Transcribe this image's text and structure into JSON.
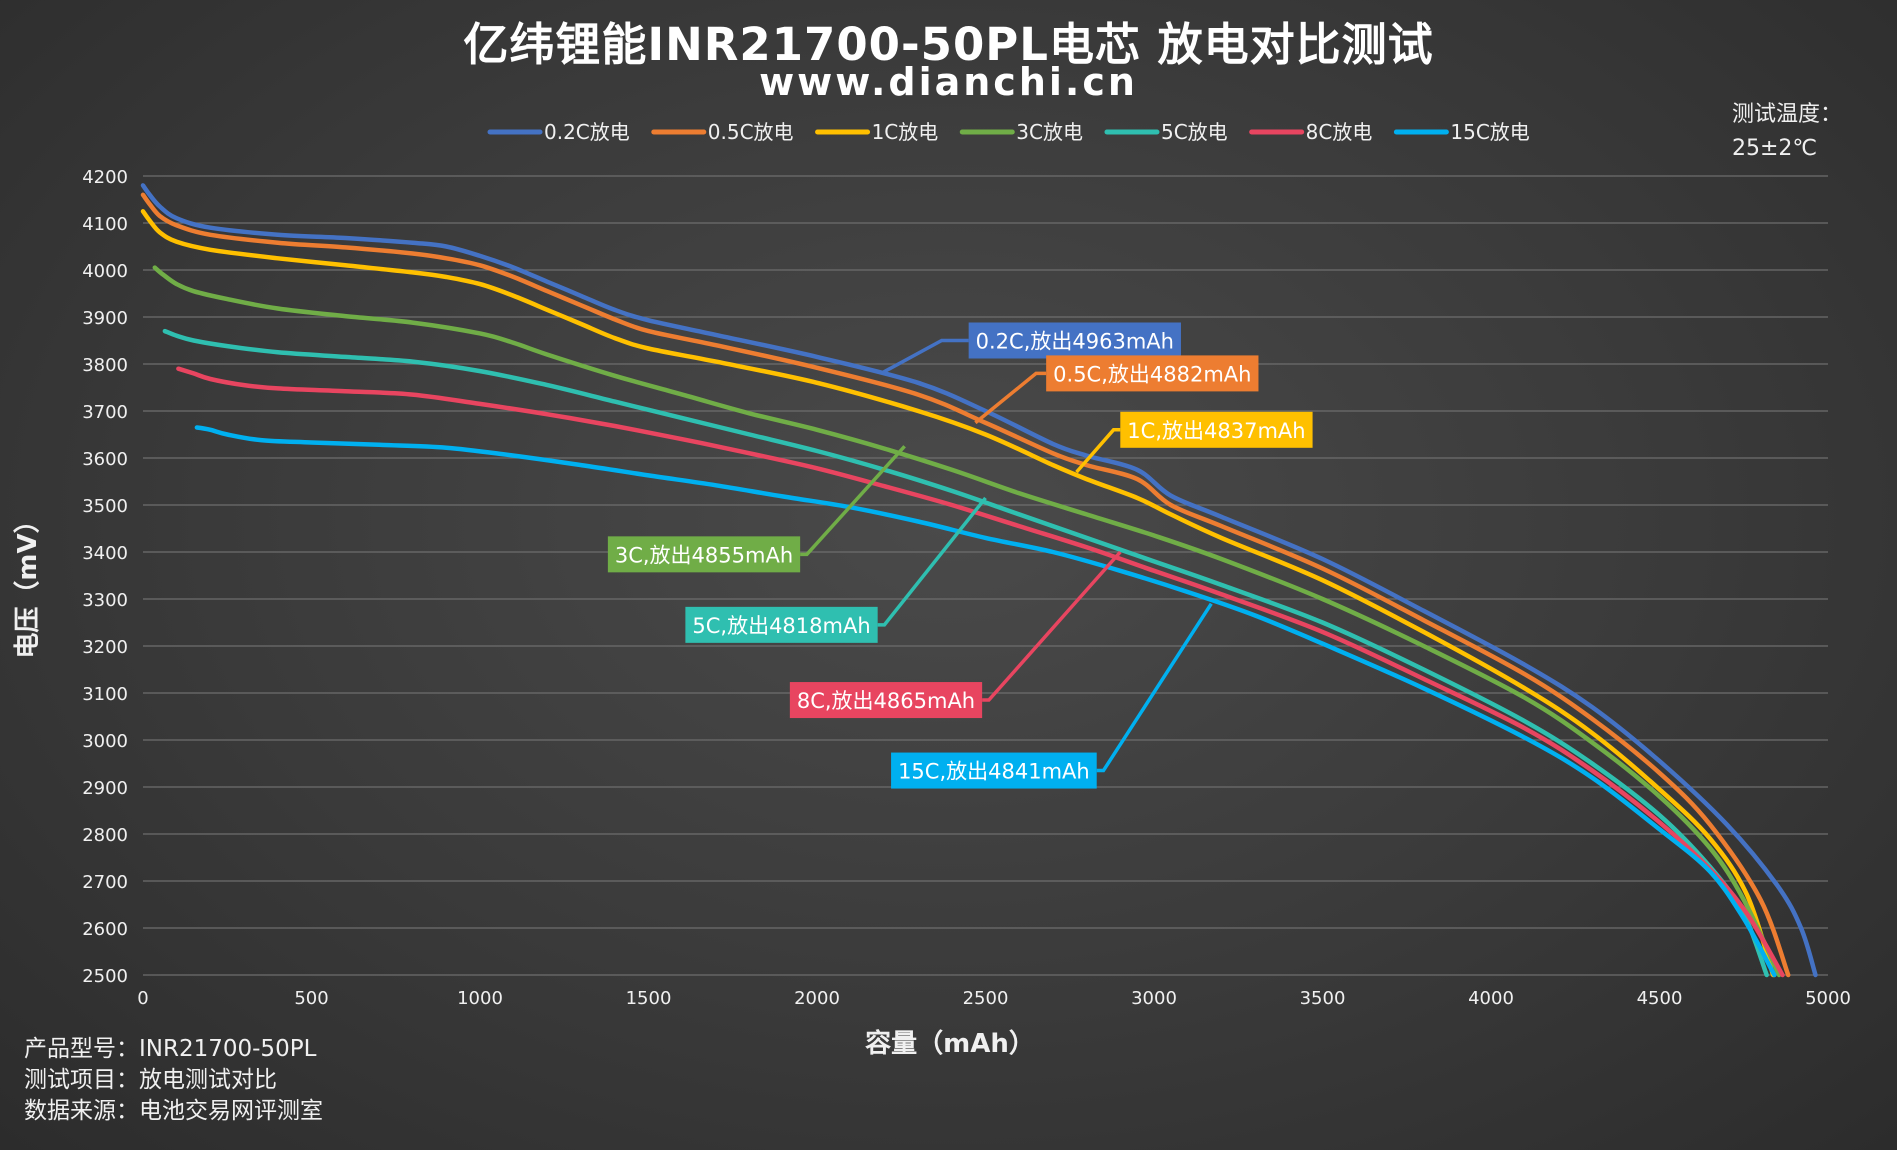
{
  "header": {
    "title": "亿纬锂能INR21700-50PL电芯 放电对比测试",
    "subtitle": "www.dianchi.cn"
  },
  "temperature": {
    "label": "测试温度：",
    "value": "25±2℃"
  },
  "footer": {
    "model": "产品型号：INR21700-50PL",
    "item": "测试项目：放电测试对比",
    "source": "数据来源：电池交易网评测室"
  },
  "chart_data": {
    "type": "line",
    "xlabel": "容量（mAh）",
    "ylabel": "电压（mV）",
    "xlim": [
      0,
      5000
    ],
    "ylim": [
      2500,
      4200
    ],
    "xticks": [
      0,
      500,
      1000,
      1500,
      2000,
      2500,
      3000,
      3500,
      4000,
      4500,
      5000
    ],
    "yticks": [
      2500,
      2600,
      2700,
      2800,
      2900,
      3000,
      3100,
      3200,
      3300,
      3400,
      3500,
      3600,
      3700,
      3800,
      3900,
      4000,
      4100,
      4200
    ],
    "grid": "horizontal",
    "legend_position": "top",
    "series": [
      {
        "name": "0.2C放电",
        "color": "#4472c4",
        "points": [
          [
            0,
            4180
          ],
          [
            20,
            4160
          ],
          [
            50,
            4135
          ],
          [
            100,
            4110
          ],
          [
            200,
            4090
          ],
          [
            400,
            4075
          ],
          [
            600,
            4068
          ],
          [
            800,
            4058
          ],
          [
            900,
            4050
          ],
          [
            1000,
            4030
          ],
          [
            1100,
            4005
          ],
          [
            1200,
            3975
          ],
          [
            1300,
            3945
          ],
          [
            1400,
            3915
          ],
          [
            1500,
            3893
          ],
          [
            1700,
            3862
          ],
          [
            2000,
            3815
          ],
          [
            2300,
            3760
          ],
          [
            2500,
            3700
          ],
          [
            2700,
            3630
          ],
          [
            2800,
            3605
          ],
          [
            2950,
            3575
          ],
          [
            3050,
            3520
          ],
          [
            3200,
            3475
          ],
          [
            3500,
            3385
          ],
          [
            3800,
            3275
          ],
          [
            4100,
            3160
          ],
          [
            4300,
            3070
          ],
          [
            4500,
            2955
          ],
          [
            4700,
            2820
          ],
          [
            4850,
            2690
          ],
          [
            4920,
            2600
          ],
          [
            4963,
            2500
          ]
        ]
      },
      {
        "name": "0.5C放电",
        "color": "#ed7d31",
        "points": [
          [
            0,
            4160
          ],
          [
            20,
            4140
          ],
          [
            50,
            4115
          ],
          [
            100,
            4095
          ],
          [
            200,
            4075
          ],
          [
            400,
            4058
          ],
          [
            600,
            4048
          ],
          [
            800,
            4035
          ],
          [
            900,
            4025
          ],
          [
            1000,
            4010
          ],
          [
            1100,
            3985
          ],
          [
            1200,
            3955
          ],
          [
            1300,
            3925
          ],
          [
            1400,
            3895
          ],
          [
            1500,
            3870
          ],
          [
            1700,
            3840
          ],
          [
            2000,
            3792
          ],
          [
            2300,
            3735
          ],
          [
            2500,
            3675
          ],
          [
            2700,
            3610
          ],
          [
            2800,
            3585
          ],
          [
            2950,
            3555
          ],
          [
            3050,
            3500
          ],
          [
            3200,
            3455
          ],
          [
            3500,
            3365
          ],
          [
            3800,
            3255
          ],
          [
            4100,
            3140
          ],
          [
            4300,
            3045
          ],
          [
            4500,
            2930
          ],
          [
            4650,
            2820
          ],
          [
            4800,
            2660
          ],
          [
            4882,
            2500
          ]
        ]
      },
      {
        "name": "1C放电",
        "color": "#ffc000",
        "points": [
          [
            0,
            4125
          ],
          [
            20,
            4105
          ],
          [
            50,
            4080
          ],
          [
            100,
            4060
          ],
          [
            200,
            4043
          ],
          [
            400,
            4025
          ],
          [
            600,
            4010
          ],
          [
            800,
            3995
          ],
          [
            900,
            3985
          ],
          [
            1000,
            3970
          ],
          [
            1100,
            3945
          ],
          [
            1200,
            3915
          ],
          [
            1300,
            3885
          ],
          [
            1400,
            3855
          ],
          [
            1500,
            3833
          ],
          [
            1700,
            3805
          ],
          [
            2000,
            3760
          ],
          [
            2300,
            3700
          ],
          [
            2500,
            3650
          ],
          [
            2700,
            3585
          ],
          [
            2800,
            3555
          ],
          [
            2950,
            3515
          ],
          [
            3050,
            3480
          ],
          [
            3200,
            3430
          ],
          [
            3500,
            3340
          ],
          [
            3800,
            3230
          ],
          [
            4100,
            3110
          ],
          [
            4300,
            3015
          ],
          [
            4500,
            2895
          ],
          [
            4650,
            2790
          ],
          [
            4760,
            2670
          ],
          [
            4837,
            2500
          ]
        ]
      },
      {
        "name": "3C放电",
        "color": "#70ad47",
        "points": [
          [
            35,
            4005
          ],
          [
            60,
            3990
          ],
          [
            100,
            3970
          ],
          [
            150,
            3955
          ],
          [
            250,
            3938
          ],
          [
            400,
            3918
          ],
          [
            600,
            3902
          ],
          [
            800,
            3888
          ],
          [
            1000,
            3865
          ],
          [
            1100,
            3845
          ],
          [
            1200,
            3820
          ],
          [
            1400,
            3775
          ],
          [
            1600,
            3735
          ],
          [
            1800,
            3695
          ],
          [
            2000,
            3660
          ],
          [
            2200,
            3620
          ],
          [
            2400,
            3575
          ],
          [
            2600,
            3525
          ],
          [
            2800,
            3480
          ],
          [
            3000,
            3435
          ],
          [
            3200,
            3385
          ],
          [
            3500,
            3300
          ],
          [
            3800,
            3200
          ],
          [
            4100,
            3090
          ],
          [
            4300,
            2995
          ],
          [
            4500,
            2880
          ],
          [
            4650,
            2770
          ],
          [
            4750,
            2660
          ],
          [
            4855,
            2500
          ]
        ]
      },
      {
        "name": "5C放电",
        "color": "#2fbfb0",
        "points": [
          [
            65,
            3870
          ],
          [
            100,
            3860
          ],
          [
            150,
            3850
          ],
          [
            250,
            3838
          ],
          [
            400,
            3825
          ],
          [
            600,
            3815
          ],
          [
            800,
            3805
          ],
          [
            1000,
            3785
          ],
          [
            1200,
            3755
          ],
          [
            1400,
            3720
          ],
          [
            1600,
            3685
          ],
          [
            1800,
            3650
          ],
          [
            2000,
            3615
          ],
          [
            2200,
            3575
          ],
          [
            2400,
            3530
          ],
          [
            2600,
            3480
          ],
          [
            2800,
            3430
          ],
          [
            3000,
            3380
          ],
          [
            3200,
            3330
          ],
          [
            3500,
            3250
          ],
          [
            3800,
            3150
          ],
          [
            4100,
            3040
          ],
          [
            4300,
            2950
          ],
          [
            4500,
            2840
          ],
          [
            4650,
            2730
          ],
          [
            4750,
            2630
          ],
          [
            4818,
            2500
          ]
        ]
      },
      {
        "name": "8C放电",
        "color": "#e84560",
        "points": [
          [
            105,
            3790
          ],
          [
            150,
            3780
          ],
          [
            200,
            3768
          ],
          [
            300,
            3755
          ],
          [
            400,
            3748
          ],
          [
            600,
            3742
          ],
          [
            800,
            3735
          ],
          [
            1000,
            3715
          ],
          [
            1200,
            3693
          ],
          [
            1400,
            3668
          ],
          [
            1600,
            3640
          ],
          [
            1800,
            3610
          ],
          [
            2000,
            3578
          ],
          [
            2200,
            3540
          ],
          [
            2400,
            3500
          ],
          [
            2600,
            3455
          ],
          [
            2800,
            3410
          ],
          [
            3000,
            3360
          ],
          [
            3200,
            3310
          ],
          [
            3500,
            3230
          ],
          [
            3800,
            3130
          ],
          [
            4100,
            3025
          ],
          [
            4300,
            2935
          ],
          [
            4500,
            2825
          ],
          [
            4650,
            2725
          ],
          [
            4760,
            2630
          ],
          [
            4865,
            2500
          ]
        ]
      },
      {
        "name": "15C放电",
        "color": "#00b0f0",
        "points": [
          [
            160,
            3665
          ],
          [
            200,
            3660
          ],
          [
            250,
            3650
          ],
          [
            350,
            3638
          ],
          [
            500,
            3633
          ],
          [
            700,
            3628
          ],
          [
            900,
            3622
          ],
          [
            1100,
            3605
          ],
          [
            1300,
            3585
          ],
          [
            1500,
            3563
          ],
          [
            1700,
            3542
          ],
          [
            1900,
            3518
          ],
          [
            2100,
            3495
          ],
          [
            2300,
            3465
          ],
          [
            2500,
            3430
          ],
          [
            2700,
            3400
          ],
          [
            2900,
            3360
          ],
          [
            3100,
            3315
          ],
          [
            3300,
            3265
          ],
          [
            3500,
            3205
          ],
          [
            3800,
            3110
          ],
          [
            4100,
            3005
          ],
          [
            4300,
            2920
          ],
          [
            4500,
            2810
          ],
          [
            4650,
            2720
          ],
          [
            4750,
            2620
          ],
          [
            4841,
            2500
          ]
        ]
      }
    ],
    "annotations": [
      {
        "text": "0.2C,放出4963mAh",
        "color": "#4472c4",
        "text_color": "#ffffff",
        "anchor": [
          2190,
          3780
        ],
        "elbow": [
          2370,
          3850
        ],
        "label_at": [
          2450,
          3850
        ]
      },
      {
        "text": "0.5C,放出4882mAh",
        "color": "#ed7d31",
        "text_color": "#000000",
        "anchor": [
          2470,
          3675
        ],
        "elbow": [
          2650,
          3780
        ],
        "label_at": [
          2680,
          3780
        ]
      },
      {
        "text": "1C,放出4837mAh",
        "color": "#ffc000",
        "text_color": "#000000",
        "anchor": [
          2770,
          3570
        ],
        "elbow": [
          2880,
          3660
        ],
        "label_at": [
          2900,
          3660
        ]
      },
      {
        "text": "3C,放出4855mAh",
        "color": "#70ad47",
        "text_color": "#000000",
        "anchor": [
          2260,
          3625
        ],
        "elbow": [
          1970,
          3395
        ],
        "label_at": [
          1950,
          3395
        ]
      },
      {
        "text": "5C,放出4818mAh",
        "color": "#2fbfb0",
        "text_color": "#000000",
        "anchor": [
          2500,
          3515
        ],
        "elbow": [
          2200,
          3245
        ],
        "label_at": [
          2180,
          3245
        ]
      },
      {
        "text": "8C,放出4865mAh",
        "color": "#e84560",
        "text_color": "#000000",
        "anchor": [
          2900,
          3400
        ],
        "elbow": [
          2510,
          3085
        ],
        "label_at": [
          2490,
          3085
        ]
      },
      {
        "text": "15C,放出4841mAh",
        "color": "#00b0f0",
        "text_color": "#000000",
        "anchor": [
          3170,
          3290
        ],
        "elbow": [
          2850,
          2935
        ],
        "label_at": [
          2830,
          2935
        ]
      }
    ]
  }
}
